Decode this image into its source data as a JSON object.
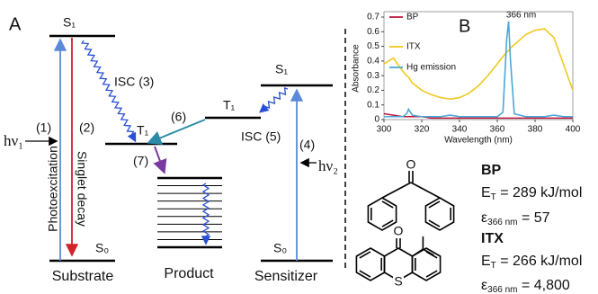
{
  "panel_a": {
    "label": "A",
    "substrate_s1": "S₁",
    "substrate_s0": "S₀",
    "substrate_t1": "T₁",
    "isc3": "ISC (3)",
    "step1": "(1)",
    "hv1": "hν₁",
    "step2": "(2)",
    "photoexcitation": "Photoexcitation",
    "singlet_decay": "Singlet decay",
    "step6": "(6)",
    "step7": "(7)",
    "sensitizer_s1": "S₁",
    "sensitizer_t1": "T₁",
    "sensitizer_s0": "S₀",
    "isc5": "ISC (5)",
    "step4": "(4)",
    "hv2": "hν₂",
    "substrate": "Substrate",
    "product": "Product",
    "sensitizer": "Sensitizer"
  },
  "chart_data": {
    "type": "line",
    "label": "B",
    "xlabel": "Wavelength (nm)",
    "ylabel": "Absorbance",
    "annotation": "366 nm",
    "x": [
      300,
      305,
      310,
      312,
      313,
      315,
      320,
      325,
      330,
      335,
      340,
      345,
      350,
      355,
      360,
      363,
      365,
      366,
      367,
      369,
      375,
      380,
      385,
      390,
      395,
      400
    ],
    "series": [
      {
        "name": "BP",
        "color": "#c0143c",
        "values": [
          0.04,
          0.03,
          0.02,
          0.02,
          0.02,
          0.02,
          0.02,
          0.01,
          0.01,
          0.01,
          0.01,
          0.01,
          0.01,
          0.01,
          0.01,
          0.01,
          0.01,
          0.01,
          0.01,
          0.01,
          0.01,
          0.01,
          0.01,
          0.01,
          0.01,
          0.01
        ]
      },
      {
        "name": "ITX",
        "color": "#f2c81e",
        "values": [
          0.38,
          0.42,
          0.33,
          0.3,
          0.29,
          0.25,
          0.2,
          0.17,
          0.15,
          0.14,
          0.15,
          0.18,
          0.23,
          0.3,
          0.38,
          0.43,
          0.46,
          0.47,
          0.49,
          0.51,
          0.58,
          0.61,
          0.62,
          0.56,
          0.38,
          0.2
        ]
      },
      {
        "name": "Hg emission",
        "color": "#4aa8d8",
        "values": [
          0.02,
          0.02,
          0.02,
          0.04,
          0.07,
          0.03,
          0.02,
          0.02,
          0.02,
          0.03,
          0.02,
          0.02,
          0.02,
          0.02,
          0.02,
          0.05,
          0.55,
          0.67,
          0.4,
          0.04,
          0.02,
          0.02,
          0.02,
          0.03,
          0.02,
          0.02
        ]
      }
    ],
    "xlim": [
      300,
      400
    ],
    "xticks": [
      300,
      320,
      340,
      360,
      380,
      400
    ],
    "ylim": [
      0,
      0.7
    ],
    "yticks": [
      0,
      0.1,
      0.2,
      0.3,
      0.4,
      0.5,
      0.6,
      0.7
    ],
    "legend": "upper left"
  },
  "molecules": [
    {
      "name": "BP",
      "atoms": [
        "O"
      ],
      "energy": {
        "symbol": "E",
        "sub": "T",
        "rest": " = 289 kJ/mol"
      },
      "epsilon": {
        "symbol": "ε",
        "sub": "366 nm",
        "rest": " = 57"
      }
    },
    {
      "name": "ITX",
      "atoms": [
        "O",
        "S"
      ],
      "energy": {
        "symbol": "E",
        "sub": "T",
        "rest": " = 266 kJ/mol"
      },
      "epsilon": {
        "symbol": "ε",
        "sub": "366 nm",
        "rest": " = 4,800"
      }
    }
  ]
}
